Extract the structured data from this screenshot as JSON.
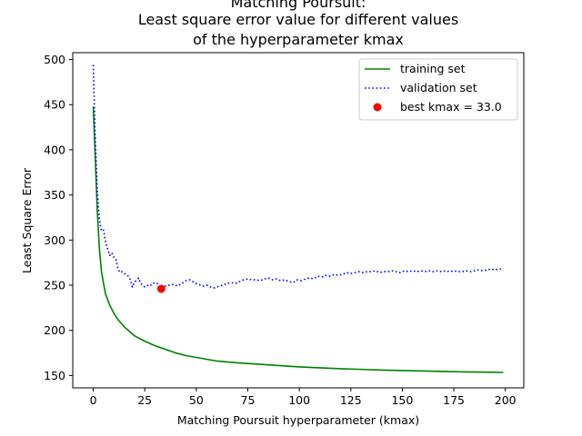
{
  "chart_data": {
    "type": "line",
    "title_lines": [
      "Matching Poursuit:",
      "Least square error value for different values",
      "of the hyperparameter kmax"
    ],
    "xlabel": "Matching Poursuit hyperparameter (kmax)",
    "ylabel": "Least Square Error",
    "xlim": [
      -9.95,
      208.95
    ],
    "ylim": [
      136.3,
      507.6
    ],
    "x_ticks": [
      0,
      25,
      50,
      75,
      100,
      125,
      150,
      175,
      200
    ],
    "y_ticks": [
      150,
      200,
      250,
      300,
      350,
      400,
      450,
      500
    ],
    "grid": false,
    "legend_position": "upper right",
    "series": [
      {
        "name": "training set",
        "style": "solid",
        "color": "#008000",
        "points": [
          [
            0,
            448
          ],
          [
            1,
            390
          ],
          [
            2,
            330
          ],
          [
            3,
            290
          ],
          [
            4,
            265
          ],
          [
            5,
            252
          ],
          [
            6,
            240
          ],
          [
            8,
            228
          ],
          [
            10,
            219
          ],
          [
            12,
            212
          ],
          [
            15,
            204
          ],
          [
            20,
            194
          ],
          [
            25,
            188
          ],
          [
            30,
            183
          ],
          [
            35,
            179
          ],
          [
            40,
            175
          ],
          [
            45,
            172
          ],
          [
            50,
            170
          ],
          [
            60,
            166
          ],
          [
            70,
            164
          ],
          [
            80,
            162.5
          ],
          [
            90,
            161
          ],
          [
            100,
            159.5
          ],
          [
            110,
            158.5
          ],
          [
            120,
            157.5
          ],
          [
            130,
            156.8
          ],
          [
            140,
            156
          ],
          [
            150,
            155.5
          ],
          [
            160,
            155
          ],
          [
            170,
            154.5
          ],
          [
            180,
            154
          ],
          [
            190,
            153.7
          ],
          [
            199,
            153.4
          ]
        ]
      },
      {
        "name": "validation set",
        "style": "dotted",
        "color": "#0000ff",
        "points": [
          [
            0,
            494
          ],
          [
            1,
            412
          ],
          [
            2,
            352
          ],
          [
            3,
            322
          ],
          [
            4,
            310
          ],
          [
            5,
            311
          ],
          [
            6,
            298
          ],
          [
            7,
            290
          ],
          [
            8,
            283
          ],
          [
            9,
            286
          ],
          [
            10,
            281
          ],
          [
            11,
            279
          ],
          [
            12,
            268
          ],
          [
            13,
            264
          ],
          [
            14,
            265
          ],
          [
            15,
            263
          ],
          [
            16,
            262
          ],
          [
            17,
            260
          ],
          [
            18,
            256
          ],
          [
            19,
            248
          ],
          [
            20,
            254
          ],
          [
            21,
            255
          ],
          [
            22,
            258
          ],
          [
            23,
            252
          ],
          [
            24,
            250
          ],
          [
            25,
            248
          ],
          [
            26,
            249
          ],
          [
            27,
            251
          ],
          [
            28,
            250
          ],
          [
            29,
            252
          ],
          [
            30,
            253
          ],
          [
            31,
            252
          ],
          [
            32,
            249
          ],
          [
            33,
            246
          ],
          [
            34,
            248
          ],
          [
            35,
            249
          ],
          [
            37,
            250
          ],
          [
            39,
            251
          ],
          [
            41,
            249
          ],
          [
            43,
            252
          ],
          [
            45,
            255
          ],
          [
            47,
            256
          ],
          [
            49,
            253
          ],
          [
            51,
            251
          ],
          [
            53,
            249
          ],
          [
            55,
            250
          ],
          [
            57,
            248
          ],
          [
            59,
            247
          ],
          [
            61,
            249
          ],
          [
            63,
            250
          ],
          [
            65,
            252
          ],
          [
            67,
            253
          ],
          [
            69,
            252
          ],
          [
            71,
            254
          ],
          [
            73,
            256
          ],
          [
            75,
            257
          ],
          [
            77,
            256
          ],
          [
            79,
            256
          ],
          [
            81,
            255
          ],
          [
            83,
            257
          ],
          [
            85,
            258
          ],
          [
            87,
            256
          ],
          [
            89,
            257
          ],
          [
            91,
            255
          ],
          [
            93,
            256
          ],
          [
            95,
            254
          ],
          [
            97,
            253
          ],
          [
            99,
            256
          ],
          [
            101,
            255
          ],
          [
            103,
            257
          ],
          [
            105,
            258
          ],
          [
            107,
            257
          ],
          [
            109,
            260
          ],
          [
            111,
            259
          ],
          [
            113,
            261
          ],
          [
            115,
            260
          ],
          [
            117,
            262
          ],
          [
            119,
            261
          ],
          [
            121,
            262
          ],
          [
            123,
            264
          ],
          [
            125,
            263
          ],
          [
            127,
            264
          ],
          [
            129,
            265
          ],
          [
            131,
            264
          ],
          [
            133,
            265
          ],
          [
            135,
            265
          ],
          [
            137,
            266
          ],
          [
            139,
            264
          ],
          [
            141,
            265
          ],
          [
            143,
            265
          ],
          [
            145,
            266
          ],
          [
            147,
            265
          ],
          [
            149,
            264
          ],
          [
            151,
            266
          ],
          [
            153,
            265
          ],
          [
            155,
            266
          ],
          [
            157,
            265
          ],
          [
            159,
            266
          ],
          [
            161,
            265
          ],
          [
            163,
            266
          ],
          [
            165,
            265
          ],
          [
            167,
            266
          ],
          [
            169,
            265
          ],
          [
            171,
            266
          ],
          [
            173,
            265
          ],
          [
            175,
            266
          ],
          [
            177,
            265
          ],
          [
            179,
            265
          ],
          [
            181,
            266
          ],
          [
            183,
            265
          ],
          [
            185,
            266
          ],
          [
            187,
            267
          ],
          [
            189,
            266
          ],
          [
            191,
            267
          ],
          [
            193,
            268
          ],
          [
            195,
            267
          ],
          [
            197,
            268
          ],
          [
            199,
            268
          ]
        ]
      }
    ],
    "best_point": {
      "label": "best kmax = 33.0",
      "x": 33.0,
      "y": 246,
      "color": "#ff0000"
    }
  }
}
